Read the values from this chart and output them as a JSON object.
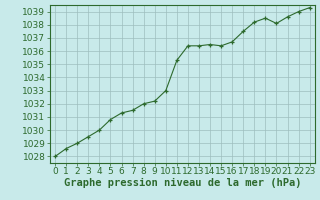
{
  "x": [
    0,
    1,
    2,
    3,
    4,
    5,
    6,
    7,
    8,
    9,
    10,
    11,
    12,
    13,
    14,
    15,
    16,
    17,
    18,
    19,
    20,
    21,
    22,
    23
  ],
  "y": [
    1028.0,
    1028.6,
    1029.0,
    1029.5,
    1030.0,
    1030.8,
    1031.3,
    1031.5,
    1032.0,
    1032.2,
    1033.0,
    1035.3,
    1036.4,
    1036.4,
    1036.5,
    1036.4,
    1036.7,
    1037.5,
    1038.2,
    1038.5,
    1038.1,
    1038.6,
    1039.0,
    1039.3
  ],
  "xlim": [
    -0.5,
    23.5
  ],
  "ylim": [
    1027.5,
    1039.5
  ],
  "yticks": [
    1028,
    1029,
    1030,
    1031,
    1032,
    1033,
    1034,
    1035,
    1036,
    1037,
    1038,
    1039
  ],
  "xticks": [
    0,
    1,
    2,
    3,
    4,
    5,
    6,
    7,
    8,
    9,
    10,
    11,
    12,
    13,
    14,
    15,
    16,
    17,
    18,
    19,
    20,
    21,
    22,
    23
  ],
  "xlabel": "Graphe pression niveau de la mer (hPa)",
  "line_color": "#2d6a2d",
  "marker_color": "#2d6a2d",
  "bg_color": "#c8eaea",
  "grid_color": "#9ebebe",
  "border_color": "#2d6a2d",
  "tick_label_color": "#2d6a2d",
  "xlabel_color": "#2d6a2d",
  "xlabel_fontsize": 7.5,
  "tick_fontsize": 6.5
}
